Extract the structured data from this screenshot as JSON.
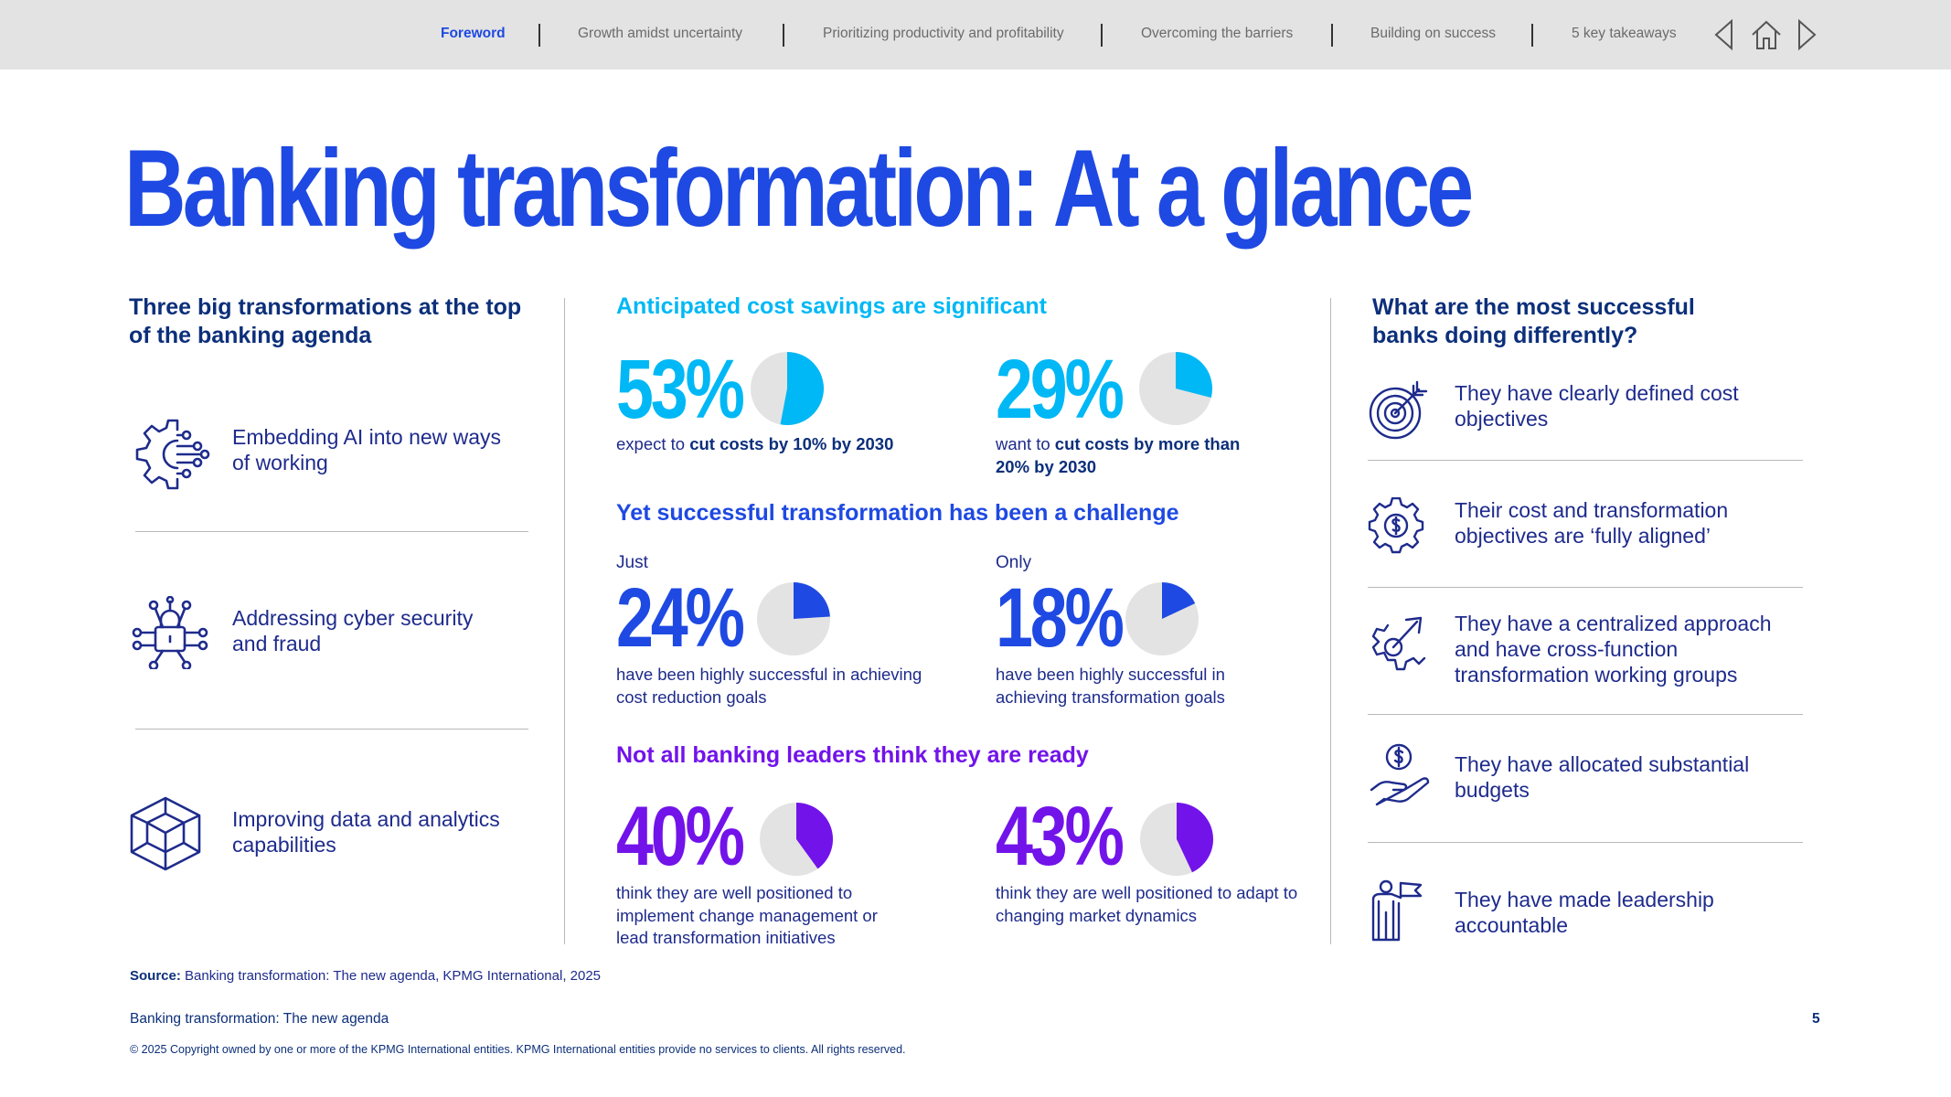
{
  "nav": {
    "items": [
      {
        "label": "Foreword",
        "active": true
      },
      {
        "label": "Growth amidst uncertainty",
        "active": false
      },
      {
        "label": "Prioritizing productivity and profitability",
        "active": false
      },
      {
        "label": "Overcoming the barriers",
        "active": false
      },
      {
        "label": "Building on success",
        "active": false
      },
      {
        "label": "5 key takeaways",
        "active": false
      }
    ],
    "icons": [
      "previous-arrow-icon",
      "home-icon",
      "next-arrow-icon"
    ]
  },
  "title": "Banking transformation: At a glance",
  "colors": {
    "brand_blue": "#1e49e2",
    "navy": "#0c2f7a",
    "cyan": "#00b8f5",
    "purple": "#7213ea",
    "pie_bg": "#e3e3e3"
  },
  "transformations": {
    "heading": "Three big transformations at the top of the banking agenda",
    "items": [
      {
        "icon": "ai-gear-circuit-icon",
        "label": "Embedding AI into new ways of working"
      },
      {
        "icon": "security-lock-network-icon",
        "label": "Addressing cyber security and fraud"
      },
      {
        "icon": "data-cube-icon",
        "label": "Improving data and analytics capabilities"
      }
    ]
  },
  "cost_savings": {
    "heading": "Anticipated cost savings are significant",
    "stats": [
      {
        "value": "53%",
        "fraction": 0.53,
        "color": "#00b8f5",
        "desc_pre": "expect to ",
        "desc_bold": "cut costs by 10% by 2030"
      },
      {
        "value": "29%",
        "fraction": 0.29,
        "color": "#00b8f5",
        "desc_pre": "want to ",
        "desc_bold": "cut costs by more than 20% by 2030"
      }
    ]
  },
  "challenge": {
    "heading": "Yet successful transformation has been a challenge",
    "stats": [
      {
        "pre": "Just",
        "value": "24%",
        "fraction": 0.24,
        "color": "#1e49e2",
        "desc": "have been highly successful in achieving cost reduction goals"
      },
      {
        "pre": "Only",
        "value": "18%",
        "fraction": 0.18,
        "color": "#1e49e2",
        "desc": "have been highly successful in achieving transformation goals"
      }
    ]
  },
  "readiness": {
    "heading": "Not all banking leaders think they are ready",
    "stats": [
      {
        "value": "40%",
        "fraction": 0.4,
        "color": "#7213ea",
        "desc": "think they are well positioned to implement change management or lead transformation initiatives"
      },
      {
        "value": "43%",
        "fraction": 0.43,
        "color": "#7213ea",
        "desc": "think they are well positioned to adapt to changing market dynamics"
      }
    ]
  },
  "successful": {
    "heading": "What are the most successful banks doing differently?",
    "items": [
      {
        "icon": "target-icon",
        "label": "They have clearly defined cost objectives"
      },
      {
        "icon": "dollar-gear-icon",
        "label": "Their cost and transformation objectives are ‘fully aligned’"
      },
      {
        "icon": "gear-arrow-icon",
        "label": "They have a centralized approach and have cross-function transformation working groups"
      },
      {
        "icon": "hand-coin-icon",
        "label": "They have allocated substantial budgets"
      },
      {
        "icon": "leader-flag-icon",
        "label": "They have made leadership accountable"
      }
    ]
  },
  "footer": {
    "source_label": "Source:",
    "source_text": " Banking transformation: The new agenda, KPMG International, 2025",
    "publication": "Banking transformation: The new agenda",
    "page_number": "5",
    "copyright": "© 2025 Copyright owned by one or more of the KPMG International entities. KPMG International entities provide no services to clients. All rights reserved."
  }
}
